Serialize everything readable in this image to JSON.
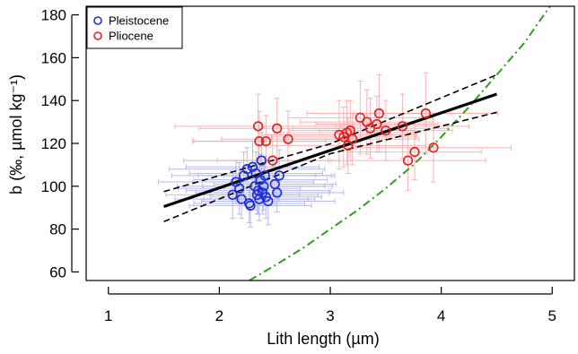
{
  "chart_data": {
    "type": "scatter",
    "xlabel": "Lith length (µm)",
    "ylabel": "b (‰, µmol kg⁻¹)",
    "xlim": [
      0.8,
      5.2
    ],
    "ylim": [
      56,
      184
    ],
    "xticks": [
      1,
      2,
      3,
      4,
      5
    ],
    "yticks": [
      60,
      80,
      100,
      120,
      140,
      160,
      180
    ],
    "legend": {
      "placement": "top-left",
      "entries": [
        "Pleistocene",
        "Pliocene"
      ]
    },
    "grid": false,
    "colors": {
      "Pleistocene": "#1f2fd6",
      "Pliocene": "#e52222",
      "Pleistocene_error": "#a9b0ea",
      "Pliocene_error": "#f5a8a8",
      "fit": "#000000",
      "curve": "#2ea01c"
    },
    "series": [
      {
        "name": "Pleistocene",
        "points": [
          {
            "x": 2.12,
            "y": 96,
            "xerr": 0.6,
            "yerr": 11
          },
          {
            "x": 2.15,
            "y": 102,
            "xerr": 0.7,
            "yerr": 10
          },
          {
            "x": 2.18,
            "y": 99,
            "xerr": 0.55,
            "yerr": 12
          },
          {
            "x": 2.2,
            "y": 94,
            "xerr": 0.6,
            "yerr": 9
          },
          {
            "x": 2.22,
            "y": 105,
            "xerr": 0.65,
            "yerr": 11
          },
          {
            "x": 2.25,
            "y": 108,
            "xerr": 0.7,
            "yerr": 10
          },
          {
            "x": 2.27,
            "y": 92,
            "xerr": 0.5,
            "yerr": 9
          },
          {
            "x": 2.28,
            "y": 91,
            "xerr": 0.55,
            "yerr": 10
          },
          {
            "x": 2.3,
            "y": 109,
            "xerr": 0.6,
            "yerr": 12
          },
          {
            "x": 2.32,
            "y": 100,
            "xerr": 0.7,
            "yerr": 11
          },
          {
            "x": 2.33,
            "y": 106,
            "xerr": 0.6,
            "yerr": 10
          },
          {
            "x": 2.34,
            "y": 96,
            "xerr": 0.55,
            "yerr": 9
          },
          {
            "x": 2.35,
            "y": 98,
            "xerr": 0.65,
            "yerr": 11
          },
          {
            "x": 2.36,
            "y": 94,
            "xerr": 0.5,
            "yerr": 10
          },
          {
            "x": 2.37,
            "y": 103,
            "xerr": 0.6,
            "yerr": 12
          },
          {
            "x": 2.38,
            "y": 112,
            "xerr": 0.7,
            "yerr": 13
          },
          {
            "x": 2.39,
            "y": 97,
            "xerr": 0.6,
            "yerr": 10
          },
          {
            "x": 2.4,
            "y": 100,
            "xerr": 0.55,
            "yerr": 11
          },
          {
            "x": 2.41,
            "y": 105,
            "xerr": 0.6,
            "yerr": 9
          },
          {
            "x": 2.42,
            "y": 95,
            "xerr": 0.5,
            "yerr": 10
          },
          {
            "x": 2.44,
            "y": 93,
            "xerr": 0.6,
            "yerr": 11
          },
          {
            "x": 2.5,
            "y": 101,
            "xerr": 0.55,
            "yerr": 10
          },
          {
            "x": 2.52,
            "y": 97,
            "xerr": 0.6,
            "yerr": 9
          },
          {
            "x": 2.54,
            "y": 105,
            "xerr": 0.5,
            "yerr": 12
          }
        ]
      },
      {
        "name": "Pliocene",
        "points": [
          {
            "x": 2.35,
            "y": 128,
            "xerr": 0.75,
            "yerr": 15
          },
          {
            "x": 2.36,
            "y": 121,
            "xerr": 0.6,
            "yerr": 14
          },
          {
            "x": 2.42,
            "y": 121,
            "xerr": 0.65,
            "yerr": 12
          },
          {
            "x": 2.48,
            "y": 112,
            "xerr": 0.5,
            "yerr": 12
          },
          {
            "x": 2.52,
            "y": 127,
            "xerr": 0.7,
            "yerr": 14
          },
          {
            "x": 2.62,
            "y": 122,
            "xerr": 0.6,
            "yerr": 13
          },
          {
            "x": 3.08,
            "y": 124,
            "xerr": 0.7,
            "yerr": 16
          },
          {
            "x": 3.12,
            "y": 123,
            "xerr": 0.65,
            "yerr": 14
          },
          {
            "x": 3.15,
            "y": 125,
            "xerr": 0.6,
            "yerr": 15
          },
          {
            "x": 3.16,
            "y": 119,
            "xerr": 0.7,
            "yerr": 13
          },
          {
            "x": 3.18,
            "y": 126,
            "xerr": 0.55,
            "yerr": 14
          },
          {
            "x": 3.2,
            "y": 122,
            "xerr": 0.6,
            "yerr": 12
          },
          {
            "x": 3.27,
            "y": 132,
            "xerr": 0.65,
            "yerr": 17
          },
          {
            "x": 3.33,
            "y": 130,
            "xerr": 0.6,
            "yerr": 15
          },
          {
            "x": 3.36,
            "y": 127,
            "xerr": 0.7,
            "yerr": 14
          },
          {
            "x": 3.42,
            "y": 129,
            "xerr": 0.55,
            "yerr": 13
          },
          {
            "x": 3.44,
            "y": 134,
            "xerr": 0.65,
            "yerr": 18
          },
          {
            "x": 3.5,
            "y": 126,
            "xerr": 0.6,
            "yerr": 14
          },
          {
            "x": 3.65,
            "y": 128,
            "xerr": 0.6,
            "yerr": 15
          },
          {
            "x": 3.7,
            "y": 112,
            "xerr": 0.7,
            "yerr": 14
          },
          {
            "x": 3.76,
            "y": 116,
            "xerr": 0.6,
            "yerr": 13
          },
          {
            "x": 3.86,
            "y": 134,
            "xerr": 0.65,
            "yerr": 19
          },
          {
            "x": 3.93,
            "y": 118,
            "xerr": 0.7,
            "yerr": 16
          }
        ]
      }
    ],
    "fit": {
      "x": [
        1.5,
        4.5
      ],
      "y": [
        90.5,
        143
      ]
    },
    "ci_lower": {
      "x": [
        1.5,
        3.0,
        4.5
      ],
      "y": [
        83.5,
        115.2,
        134.5
      ]
    },
    "ci_upper": {
      "x": [
        1.5,
        3.0,
        4.5
      ],
      "y": [
        97.5,
        119.8,
        152
      ]
    },
    "curve": {
      "x": [
        2.27,
        2.5,
        2.75,
        3.0,
        3.25,
        3.5,
        3.75,
        4.0,
        4.25,
        4.5,
        4.75,
        4.98
      ],
      "y": [
        56,
        63,
        71,
        80,
        89,
        99,
        110,
        123,
        137,
        152,
        167,
        184
      ]
    }
  }
}
